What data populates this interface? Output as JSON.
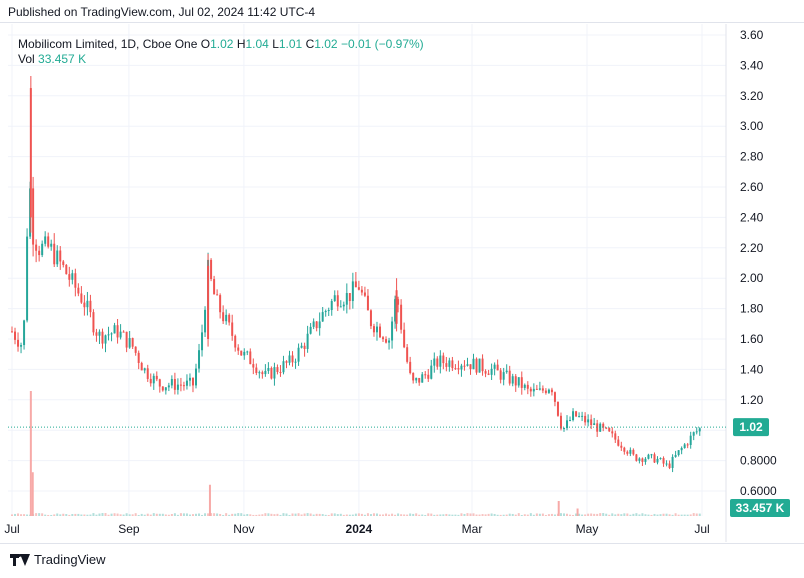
{
  "header": {
    "published": "Published on TradingView.com, Jul 02, 2024 11:42 UTC-4"
  },
  "legend": {
    "symbol": "Mobilicom Limited, 1D, Cboe One",
    "o_label": "O",
    "o_value": "1.02",
    "h_label": "H",
    "h_value": "1.04",
    "l_label": "L",
    "l_value": "1.01",
    "c_label": "C",
    "c_value": "1.02",
    "change": "−0.01 (−0.97%)",
    "vol_label": "Vol",
    "vol_value": "33.457 K"
  },
  "price_badge": "1.02",
  "volume_badge": "33.457 K",
  "footer": {
    "brand": "TradingView"
  },
  "colors": {
    "up": "#26a69a",
    "down": "#ef5350",
    "grid": "#f0f3fa",
    "badge": "#22ab94"
  },
  "chart_data": {
    "type": "candlestick",
    "title": "Mobilicom Limited, 1D, Cboe One",
    "x_ticks": [
      {
        "label": "Jul",
        "day": 0
      },
      {
        "label": "Sep",
        "day": 62
      },
      {
        "label": "Nov",
        "day": 123
      },
      {
        "label": "2024",
        "day": 184
      },
      {
        "label": "Mar",
        "day": 244
      },
      {
        "label": "May",
        "day": 305
      },
      {
        "label": "Jul",
        "day": 366
      }
    ],
    "y_ticks": [
      "3.60",
      "3.40",
      "3.20",
      "3.00",
      "2.80",
      "2.60",
      "2.40",
      "2.20",
      "2.00",
      "1.80",
      "1.60",
      "1.40",
      "1.20",
      "1.00",
      "0.8000",
      "0.6000"
    ],
    "y_tick_values": [
      3.6,
      3.4,
      3.2,
      3.0,
      2.8,
      2.6,
      2.4,
      2.2,
      2.0,
      1.8,
      1.6,
      1.4,
      1.2,
      1.0,
      0.8,
      0.6
    ],
    "ylim": [
      0.55,
      3.65
    ],
    "last_close": 1.02,
    "close_path": [
      [
        0,
        1.65
      ],
      [
        6,
        1.55
      ],
      [
        9,
        2.7
      ],
      [
        11,
        2.3
      ],
      [
        14,
        2.2
      ],
      [
        20,
        2.2
      ],
      [
        28,
        2.05
      ],
      [
        38,
        1.85
      ],
      [
        46,
        1.62
      ],
      [
        56,
        1.65
      ],
      [
        64,
        1.55
      ],
      [
        70,
        1.4
      ],
      [
        78,
        1.3
      ],
      [
        88,
        1.3
      ],
      [
        96,
        1.3
      ],
      [
        100,
        1.55
      ],
      [
        104,
        2.05
      ],
      [
        108,
        1.85
      ],
      [
        114,
        1.7
      ],
      [
        122,
        1.5
      ],
      [
        128,
        1.45
      ],
      [
        134,
        1.35
      ],
      [
        140,
        1.4
      ],
      [
        148,
        1.45
      ],
      [
        154,
        1.55
      ],
      [
        164,
        1.75
      ],
      [
        172,
        1.88
      ],
      [
        178,
        1.88
      ],
      [
        184,
        1.95
      ],
      [
        190,
        1.72
      ],
      [
        196,
        1.65
      ],
      [
        200,
        1.6
      ],
      [
        204,
        1.9
      ],
      [
        208,
        1.55
      ],
      [
        212,
        1.3
      ],
      [
        218,
        1.35
      ],
      [
        226,
        1.45
      ],
      [
        240,
        1.45
      ],
      [
        254,
        1.4
      ],
      [
        262,
        1.35
      ],
      [
        270,
        1.3
      ],
      [
        274,
        1.25
      ],
      [
        280,
        1.25
      ],
      [
        286,
        1.3
      ],
      [
        292,
        1.0
      ],
      [
        298,
        1.1
      ],
      [
        306,
        1.05
      ],
      [
        316,
        0.98
      ],
      [
        324,
        0.9
      ],
      [
        330,
        0.82
      ],
      [
        336,
        0.82
      ],
      [
        342,
        0.81
      ],
      [
        348,
        0.76
      ],
      [
        354,
        0.86
      ],
      [
        362,
        0.98
      ],
      [
        366,
        1.02
      ]
    ],
    "volume_spikes": [
      {
        "day": 10,
        "value": 1.0
      },
      {
        "day": 11,
        "value": 0.35
      },
      {
        "day": 105,
        "value": 0.25
      },
      {
        "day": 290,
        "value": 0.12
      },
      {
        "day": 300,
        "value": 0.06
      }
    ]
  }
}
